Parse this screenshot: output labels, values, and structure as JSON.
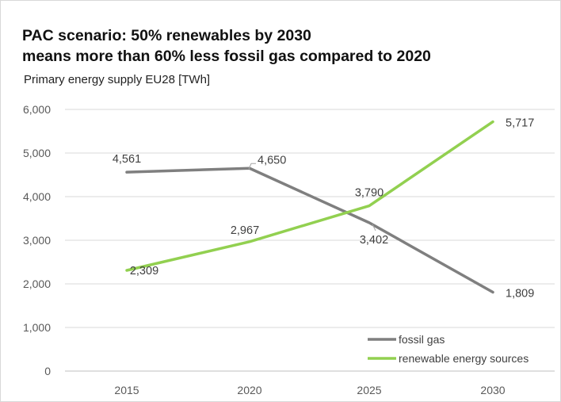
{
  "header": {
    "title_line1": "PAC scenario: 50% renewables by 2030",
    "title_line2": "means more than 60% less fossil gas compared to 2020",
    "subtitle": "Primary energy supply EU28 [TWh]"
  },
  "chart_data": {
    "type": "line",
    "title": "PAC scenario: 50% renewables by 2030 means more than 60% less fossil gas compared to 2020",
    "subtitle": "Primary energy supply EU28 [TWh]",
    "categories": [
      "2015",
      "2020",
      "2025",
      "2030"
    ],
    "yticks": [
      "0",
      "1,000",
      "2,000",
      "3,000",
      "4,000",
      "5,000",
      "6,000"
    ],
    "ylim": [
      0,
      6000
    ],
    "grid": true,
    "legend_position": "bottom-right",
    "series": [
      {
        "name": "fossil gas",
        "color": "#7f7f7f",
        "values": [
          4561,
          4650,
          3402,
          1809
        ],
        "labels": [
          "4,561",
          "4,650",
          "3,402",
          "1,809"
        ]
      },
      {
        "name": "renewable energy sources",
        "color": "#92d050",
        "values": [
          2309,
          2967,
          3790,
          5717
        ],
        "labels": [
          "2,309",
          "2,967",
          "3,790",
          "5,717"
        ]
      }
    ]
  }
}
